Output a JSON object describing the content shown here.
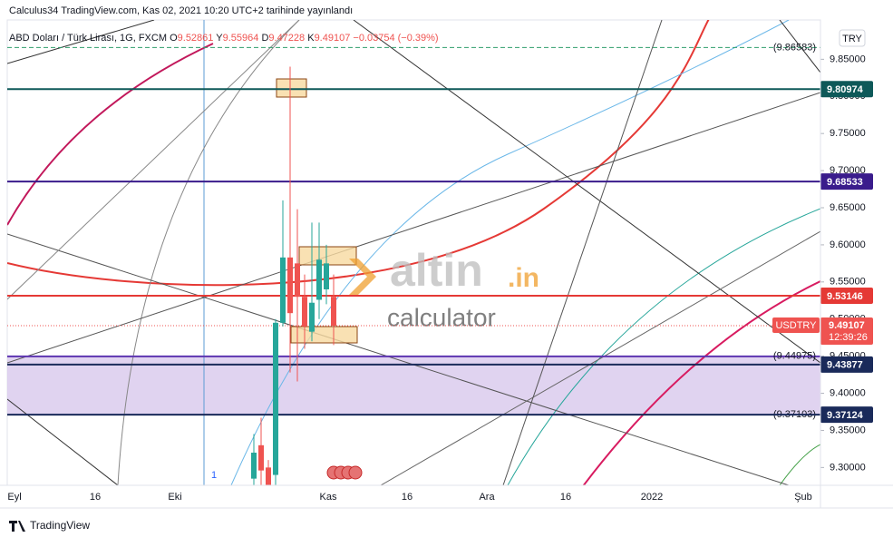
{
  "header": {
    "title": "Calculus34 TradingView.com, Kas 02, 2021 10:20 UTC+2 tarihinde yayınlandı",
    "currency_button": "TRY",
    "footer": "TradingView"
  },
  "watermark": {
    "brand": "altin",
    "suffix": ".in",
    "subtitle": "calculator"
  },
  "chart_data": {
    "type": "candlestick",
    "symbol": "ABD Doları / Türk Lirası, 1G, FXCM",
    "legend": [
      {
        "label": "O",
        "value": 9.52861
      },
      {
        "label": "Y",
        "value": 9.55964
      },
      {
        "label": "D",
        "value": 9.47228
      },
      {
        "label": "K",
        "value": 9.49107
      }
    ],
    "change": "−0.03754 (−0.39%)",
    "marker": "1",
    "open": [
      9.285,
      9.33,
      9.3,
      9.29,
      9.495,
      9.583,
      9.575,
      9.53,
      9.483,
      9.526,
      9.54,
      9.53
    ],
    "high": [
      9.345,
      9.367,
      9.31,
      9.5,
      9.66,
      9.84,
      9.648,
      9.56,
      9.63,
      9.63,
      9.6,
      9.56
    ],
    "low": [
      9.276,
      9.276,
      9.276,
      9.276,
      9.49,
      9.428,
      9.416,
      9.46,
      9.47,
      9.5,
      9.52,
      9.465
    ],
    "close": [
      9.32,
      9.296,
      9.276,
      9.495,
      9.583,
      9.508,
      9.53,
      9.49,
      9.522,
      9.58,
      9.575,
      9.491
    ],
    "up_color": "#26a69a",
    "down_color": "#ef5350",
    "last": {
      "name": "USDTRY",
      "value": 9.49107,
      "countdown": "12:39:26",
      "color": "#ef5350"
    },
    "levels": [
      {
        "value": 9.86583,
        "label": "(9.86583)",
        "color": "#2e9e6b",
        "dashed": true
      },
      {
        "value": 9.80974,
        "color": "#0e5959"
      },
      {
        "value": 9.68533,
        "color": "#3a1c8c"
      },
      {
        "value": 9.53146,
        "color": "#e53935"
      },
      {
        "value": 9.44975,
        "label": "(9.44975)",
        "color": "#5e35b1"
      },
      {
        "value": 9.43877,
        "color": "#1a2a5a"
      },
      {
        "value": 9.37103,
        "label": "(9.37103)",
        "color": "#c2185b",
        "line": false
      },
      {
        "value": 9.37124,
        "color": "#1a2a5a"
      }
    ],
    "band": {
      "from": 4,
      "to": 7,
      "color": "#d8c8ec"
    },
    "ylim": [
      9.276,
      9.903
    ],
    "yticks": [
      {
        "value": 9.3,
        "label": "9.30000"
      },
      {
        "value": 9.35,
        "label": "9.35000"
      },
      {
        "value": 9.4,
        "label": "9.40000"
      },
      {
        "value": 9.45,
        "label": "9.45000"
      },
      {
        "value": 9.5,
        "label": "9.50000"
      },
      {
        "value": 9.55,
        "label": "9.55000"
      },
      {
        "value": 9.6,
        "label": "9.60000"
      },
      {
        "value": 9.65,
        "label": "9.65000"
      },
      {
        "value": 9.7,
        "label": "9.70000"
      },
      {
        "value": 9.75,
        "label": "9.75000"
      },
      {
        "value": 9.8,
        "label": "9.80000"
      },
      {
        "value": 9.85,
        "label": "9.85000"
      }
    ],
    "xlabels": [
      "Eyl",
      "16",
      "Eki",
      "Kas",
      "16",
      "Ara",
      "16",
      "2022",
      "Şub"
    ]
  }
}
